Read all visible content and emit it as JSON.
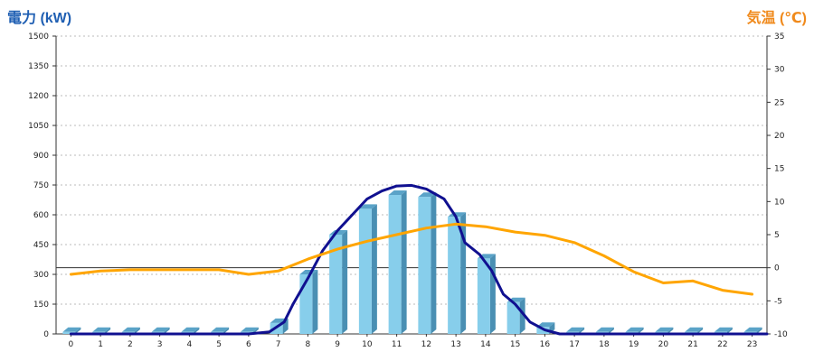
{
  "chart_data": {
    "type": "bar",
    "title": "",
    "left_axis": {
      "label": "電力 (kW)",
      "ylim": [
        0,
        1500
      ],
      "ticks": [
        0,
        150,
        300,
        450,
        600,
        750,
        900,
        1050,
        1200,
        1350,
        1500
      ]
    },
    "right_axis": {
      "label": "気温 (℃)",
      "ylim": [
        -10,
        35
      ],
      "ticks": [
        -10,
        -5,
        0,
        5,
        10,
        15,
        20,
        25,
        30,
        35
      ]
    },
    "categories": [
      "0",
      "1",
      "2",
      "3",
      "4",
      "5",
      "6",
      "7",
      "8",
      "9",
      "10",
      "11",
      "12",
      "13",
      "14",
      "15",
      "16",
      "17",
      "18",
      "19",
      "20",
      "21",
      "22",
      "23"
    ],
    "series": [
      {
        "type": "bar",
        "axis": "left",
        "values": [
          10,
          10,
          10,
          10,
          10,
          10,
          10,
          55,
          300,
          500,
          630,
          700,
          690,
          590,
          380,
          160,
          35,
          10,
          10,
          10,
          10,
          10,
          10,
          10
        ],
        "color": "#87ceeb"
      },
      {
        "type": "line",
        "axis": "left",
        "x": [
          0,
          6,
          6.7,
          7.2,
          7.5,
          8,
          8.5,
          9,
          9.5,
          10,
          10.5,
          11,
          11.5,
          12,
          12.6,
          13,
          13.3,
          13.8,
          14.2,
          14.6,
          15,
          15.5,
          16,
          16.5,
          17,
          23.5
        ],
        "values": [
          0,
          0,
          10,
          60,
          150,
          280,
          420,
          520,
          600,
          680,
          720,
          745,
          748,
          730,
          680,
          590,
          460,
          400,
          320,
          200,
          150,
          60,
          20,
          0,
          0,
          0
        ],
        "color": "#101090"
      },
      {
        "type": "line",
        "axis": "right",
        "x": [
          0,
          1,
          2,
          3,
          4,
          5,
          6,
          7,
          8,
          9,
          10,
          11,
          12,
          13,
          14,
          15,
          16,
          17,
          18,
          19,
          20,
          21,
          22,
          23
        ],
        "values": [
          -1,
          -0.5,
          -0.3,
          -0.3,
          -0.3,
          -0.3,
          -1,
          -0.5,
          1.3,
          2.8,
          4,
          5,
          6,
          6.6,
          6.2,
          5.4,
          4.9,
          3.8,
          1.8,
          -0.6,
          -2.3,
          -2,
          -3.4,
          -4
        ],
        "color": "#ffa500"
      }
    ],
    "grid": true,
    "legend": "none"
  }
}
